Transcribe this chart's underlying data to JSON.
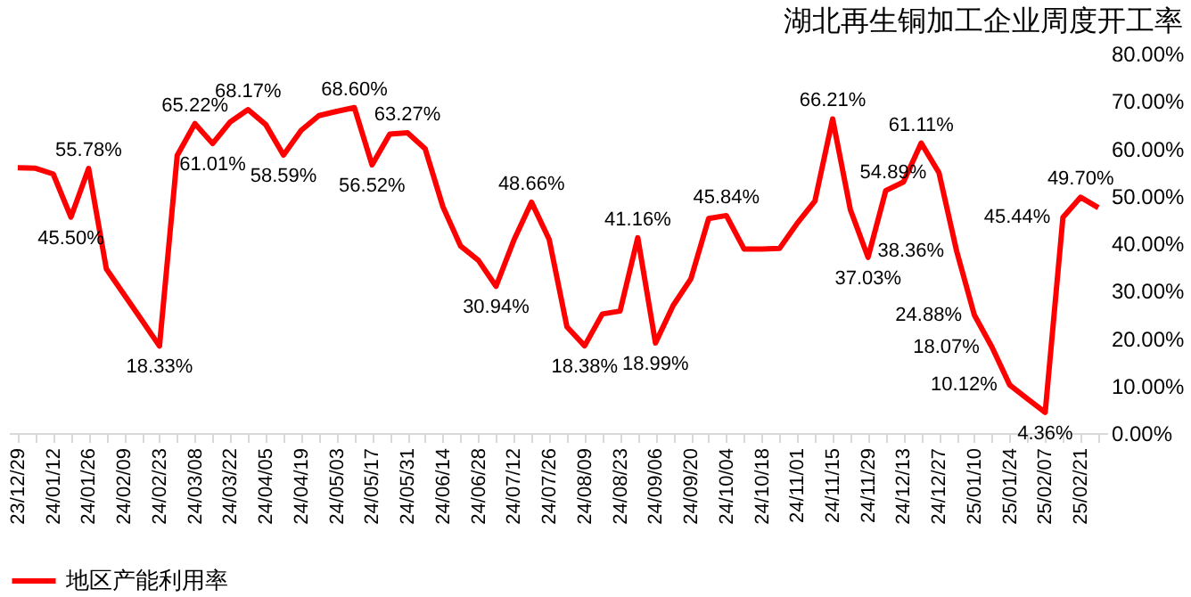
{
  "chart_data": {
    "type": "line",
    "title": "湖北再生铜加工企业周度开工率",
    "categories": [
      "23/12/29",
      null,
      "24/01/12",
      null,
      "24/01/26",
      null,
      "24/02/09",
      null,
      "24/02/23",
      null,
      "24/03/08",
      null,
      "24/03/22",
      null,
      "24/04/05",
      null,
      "24/04/19",
      null,
      "24/05/03",
      null,
      "24/05/17",
      null,
      "24/05/31",
      null,
      "24/06/14",
      null,
      "24/06/28",
      null,
      "24/07/12",
      null,
      "24/07/26",
      null,
      "24/08/09",
      null,
      "24/08/23",
      null,
      "24/09/06",
      null,
      "24/09/20",
      null,
      "24/10/04",
      null,
      "24/10/18",
      null,
      "24/11/01",
      null,
      "24/11/15",
      null,
      "24/11/29",
      null,
      "24/12/13",
      null,
      "24/12/27",
      null,
      "25/01/10",
      null,
      "25/01/24",
      null,
      "25/02/07",
      null,
      "25/02/21",
      null
    ],
    "series": [
      {
        "name": "地区产能利用率",
        "color": "#ff0000",
        "values": [
          55.9,
          55.8,
          54.6,
          45.5,
          55.78,
          34.6,
          29.2,
          23.8,
          18.33,
          58.5,
          65.22,
          61.01,
          65.6,
          68.17,
          65.0,
          58.59,
          63.8,
          66.9,
          67.8,
          68.6,
          56.52,
          63.0,
          63.27,
          59.9,
          47.7,
          39.4,
          36.4,
          30.94,
          40.6,
          48.66,
          40.8,
          22.4,
          18.38,
          25.1,
          25.7,
          41.16,
          18.99,
          26.9,
          32.5,
          45.2,
          45.84,
          38.8,
          38.8,
          38.9,
          44.2,
          48.9,
          66.21,
          47.1,
          37.03,
          51.1,
          52.9,
          61.11,
          54.89,
          38.36,
          24.88,
          18.07,
          10.12,
          7.2,
          4.36,
          45.44,
          49.7,
          47.5
        ],
        "value_labels": [
          null,
          null,
          null,
          "45.50%",
          "55.78%",
          null,
          null,
          null,
          "18.33%",
          null,
          "65.22%",
          "61.01%",
          null,
          "68.17%",
          null,
          "58.59%",
          null,
          null,
          null,
          "68.60%",
          "56.52%",
          null,
          "63.27%",
          null,
          null,
          null,
          null,
          "30.94%",
          null,
          "48.66%",
          null,
          null,
          "18.38%",
          null,
          null,
          "41.16%",
          "18.99%",
          null,
          null,
          null,
          "45.84%",
          null,
          null,
          null,
          null,
          null,
          "66.21%",
          null,
          "37.03%",
          null,
          null,
          "61.11%",
          "54.89%",
          "38.36%",
          "24.88%",
          "18.07%",
          "10.12%",
          null,
          "4.36%",
          "45.44%",
          "49.70%",
          null
        ]
      }
    ],
    "ylim": [
      0,
      80
    ],
    "yticks": [
      {
        "value": 0,
        "label": "0.00%"
      },
      {
        "value": 10,
        "label": "10.00%"
      },
      {
        "value": 20,
        "label": "20.00%"
      },
      {
        "value": 30,
        "label": "30.00%"
      },
      {
        "value": 40,
        "label": "40.00%"
      },
      {
        "value": 50,
        "label": "50.00%"
      },
      {
        "value": 60,
        "label": "60.00%"
      },
      {
        "value": 70,
        "label": "70.00%"
      },
      {
        "value": 80,
        "label": "80.00%"
      }
    ],
    "grid": false,
    "legend": "bottom",
    "marker": "none",
    "line_style": "solid"
  }
}
